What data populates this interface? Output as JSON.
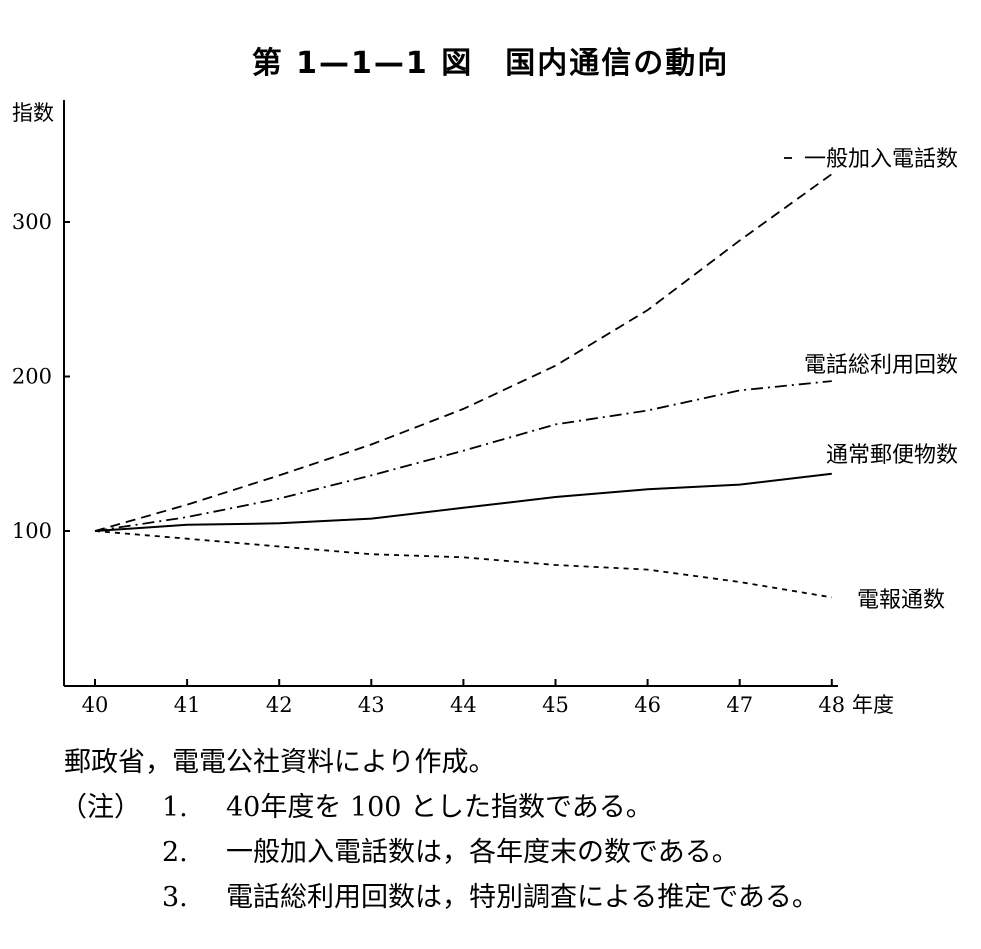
{
  "chart_data": {
    "type": "line",
    "title": "第 1—1—1 図　国内通信の動向",
    "ylabel": "指数",
    "xlabel": "年度",
    "x": [
      "40",
      "41",
      "42",
      "43",
      "44",
      "45",
      "46",
      "47",
      "48"
    ],
    "yticks": [
      "100",
      "200",
      "300"
    ],
    "ylim": [
      0,
      400
    ],
    "series": [
      {
        "name": "一般加入電話数",
        "style": "dashed",
        "values": [
          100,
          117,
          136,
          156,
          179,
          207,
          243,
          288,
          331
        ]
      },
      {
        "name": "電話総利用回数",
        "style": "dashdot",
        "values": [
          100,
          109,
          121,
          136,
          152,
          169,
          178,
          191,
          197
        ]
      },
      {
        "name": "通常郵便物数",
        "style": "solid",
        "values": [
          100,
          104,
          105,
          108,
          115,
          122,
          127,
          130,
          137
        ]
      },
      {
        "name": "電報通数",
        "style": "dotted",
        "values": [
          100,
          95,
          90,
          85,
          83,
          78,
          75,
          67,
          57
        ]
      }
    ],
    "grid": false,
    "legend": "inline labels at line ends"
  },
  "notes": {
    "source": "郵政省，電電公社資料により作成。",
    "label": "（注）",
    "items": [
      {
        "num": "1.",
        "text": "40年度を 100 とした指数である。"
      },
      {
        "num": "2.",
        "text": "一般加入電話数は，各年度末の数である。"
      },
      {
        "num": "3.",
        "text": "電話総利用回数は，特別調査による推定である。"
      }
    ]
  }
}
